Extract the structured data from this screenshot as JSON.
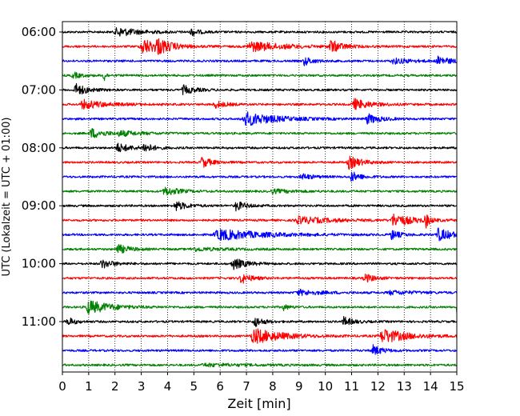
{
  "chart_data": {
    "type": "line",
    "title": "",
    "xlabel": "Zeit  [min]",
    "ylabel": "UTC (Lokalzeit = UTC + 01:00)",
    "xlim": [
      0,
      15
    ],
    "x_ticks": [
      "0",
      "1",
      "2",
      "3",
      "4",
      "5",
      "6",
      "7",
      "8",
      "9",
      "10",
      "11",
      "12",
      "13",
      "14",
      "15"
    ],
    "y_ticks": [
      "06:00",
      "07:00",
      "08:00",
      "09:00",
      "10:00",
      "11:00"
    ],
    "grid": "vertical dotted",
    "row_interval_min": 15,
    "trace_colors": [
      "#000000",
      "#ff0000",
      "#0000ff",
      "#008000"
    ],
    "rows": [
      {
        "start": "06:00",
        "color": "#000000",
        "events": [
          [
            2.1,
            0.5,
            0.8
          ],
          [
            4.9,
            0.45,
            0.25
          ]
        ]
      },
      {
        "start": "06:15",
        "color": "#ff0000",
        "events": [
          [
            3.05,
            0.9,
            0.6
          ],
          [
            3.6,
            0.7,
            0.5
          ],
          [
            7.2,
            0.55,
            1.2
          ],
          [
            10.2,
            0.7,
            0.4
          ]
        ]
      },
      {
        "start": "06:30",
        "color": "#0000ff",
        "events": [
          [
            9.2,
            0.5,
            0.3
          ],
          [
            12.6,
            0.3,
            0.7
          ],
          [
            14.3,
            0.55,
            0.4
          ]
        ]
      },
      {
        "start": "06:45",
        "color": "#008000",
        "events": [
          [
            1.55,
            1.0,
            0.08
          ],
          [
            0.4,
            0.35,
            0.3
          ]
        ]
      },
      {
        "start": "07:00",
        "color": "#000000",
        "events": [
          [
            0.5,
            0.7,
            0.4
          ],
          [
            4.6,
            0.5,
            0.4
          ]
        ]
      },
      {
        "start": "07:15",
        "color": "#ff0000",
        "events": [
          [
            0.8,
            0.5,
            0.8
          ],
          [
            5.8,
            0.4,
            0.4
          ],
          [
            11.1,
            0.6,
            0.6
          ]
        ]
      },
      {
        "start": "07:30",
        "color": "#0000ff",
        "events": [
          [
            7.0,
            0.75,
            1.1
          ],
          [
            11.6,
            0.55,
            0.45
          ]
        ]
      },
      {
        "start": "07:45",
        "color": "#008000",
        "events": [
          [
            1.1,
            0.55,
            0.5
          ],
          [
            2.2,
            0.25,
            0.8
          ]
        ]
      },
      {
        "start": "08:00",
        "color": "#000000",
        "events": [
          [
            2.1,
            0.5,
            0.5
          ],
          [
            3.1,
            0.55,
            0.3
          ]
        ]
      },
      {
        "start": "08:15",
        "color": "#ff0000",
        "events": [
          [
            5.3,
            0.6,
            0.35
          ],
          [
            10.9,
            0.7,
            0.45
          ]
        ]
      },
      {
        "start": "08:30",
        "color": "#0000ff",
        "events": [
          [
            9.1,
            0.35,
            0.4
          ],
          [
            11.0,
            0.55,
            0.35
          ]
        ]
      },
      {
        "start": "08:45",
        "color": "#008000",
        "events": [
          [
            3.9,
            0.5,
            0.5
          ],
          [
            8.0,
            0.2,
            0.8
          ]
        ]
      },
      {
        "start": "09:00",
        "color": "#000000",
        "events": [
          [
            4.3,
            0.55,
            0.4
          ],
          [
            6.6,
            0.55,
            0.35
          ]
        ]
      },
      {
        "start": "09:15",
        "color": "#ff0000",
        "events": [
          [
            9.0,
            0.4,
            1.2
          ],
          [
            12.6,
            0.7,
            0.7
          ],
          [
            13.8,
            0.9,
            0.12
          ]
        ]
      },
      {
        "start": "09:30",
        "color": "#0000ff",
        "events": [
          [
            6.0,
            0.6,
            1.6
          ],
          [
            12.5,
            0.55,
            0.3
          ],
          [
            14.3,
            0.7,
            0.55
          ]
        ]
      },
      {
        "start": "09:45",
        "color": "#008000",
        "events": [
          [
            2.1,
            0.55,
            0.4
          ],
          [
            5.0,
            0.2,
            1.0
          ]
        ]
      },
      {
        "start": "10:00",
        "color": "#000000",
        "events": [
          [
            1.5,
            0.5,
            0.4
          ],
          [
            6.5,
            0.65,
            0.45
          ]
        ]
      },
      {
        "start": "10:15",
        "color": "#ff0000",
        "events": [
          [
            6.8,
            0.6,
            0.35
          ],
          [
            11.5,
            0.5,
            0.35
          ]
        ]
      },
      {
        "start": "10:30",
        "color": "#0000ff",
        "events": [
          [
            9.0,
            0.3,
            0.8
          ],
          [
            12.5,
            0.2,
            1.0
          ]
        ]
      },
      {
        "start": "10:45",
        "color": "#008000",
        "events": [
          [
            1.0,
            0.75,
            0.8
          ],
          [
            8.4,
            0.35,
            0.2
          ],
          [
            15.0,
            0.6,
            0.2
          ]
        ]
      },
      {
        "start": "11:00",
        "color": "#000000",
        "events": [
          [
            0.2,
            0.5,
            0.25
          ],
          [
            7.3,
            0.6,
            0.3
          ],
          [
            10.7,
            0.5,
            0.35
          ]
        ]
      },
      {
        "start": "11:15",
        "color": "#ff0000",
        "events": [
          [
            7.3,
            0.85,
            1.0
          ],
          [
            12.2,
            0.8,
            0.9
          ]
        ]
      },
      {
        "start": "11:30",
        "color": "#0000ff",
        "events": [
          [
            11.8,
            0.6,
            0.35
          ]
        ]
      },
      {
        "start": "11:45",
        "color": "#008000",
        "events": [
          [
            5.5,
            0.15,
            1.5
          ]
        ]
      }
    ]
  }
}
